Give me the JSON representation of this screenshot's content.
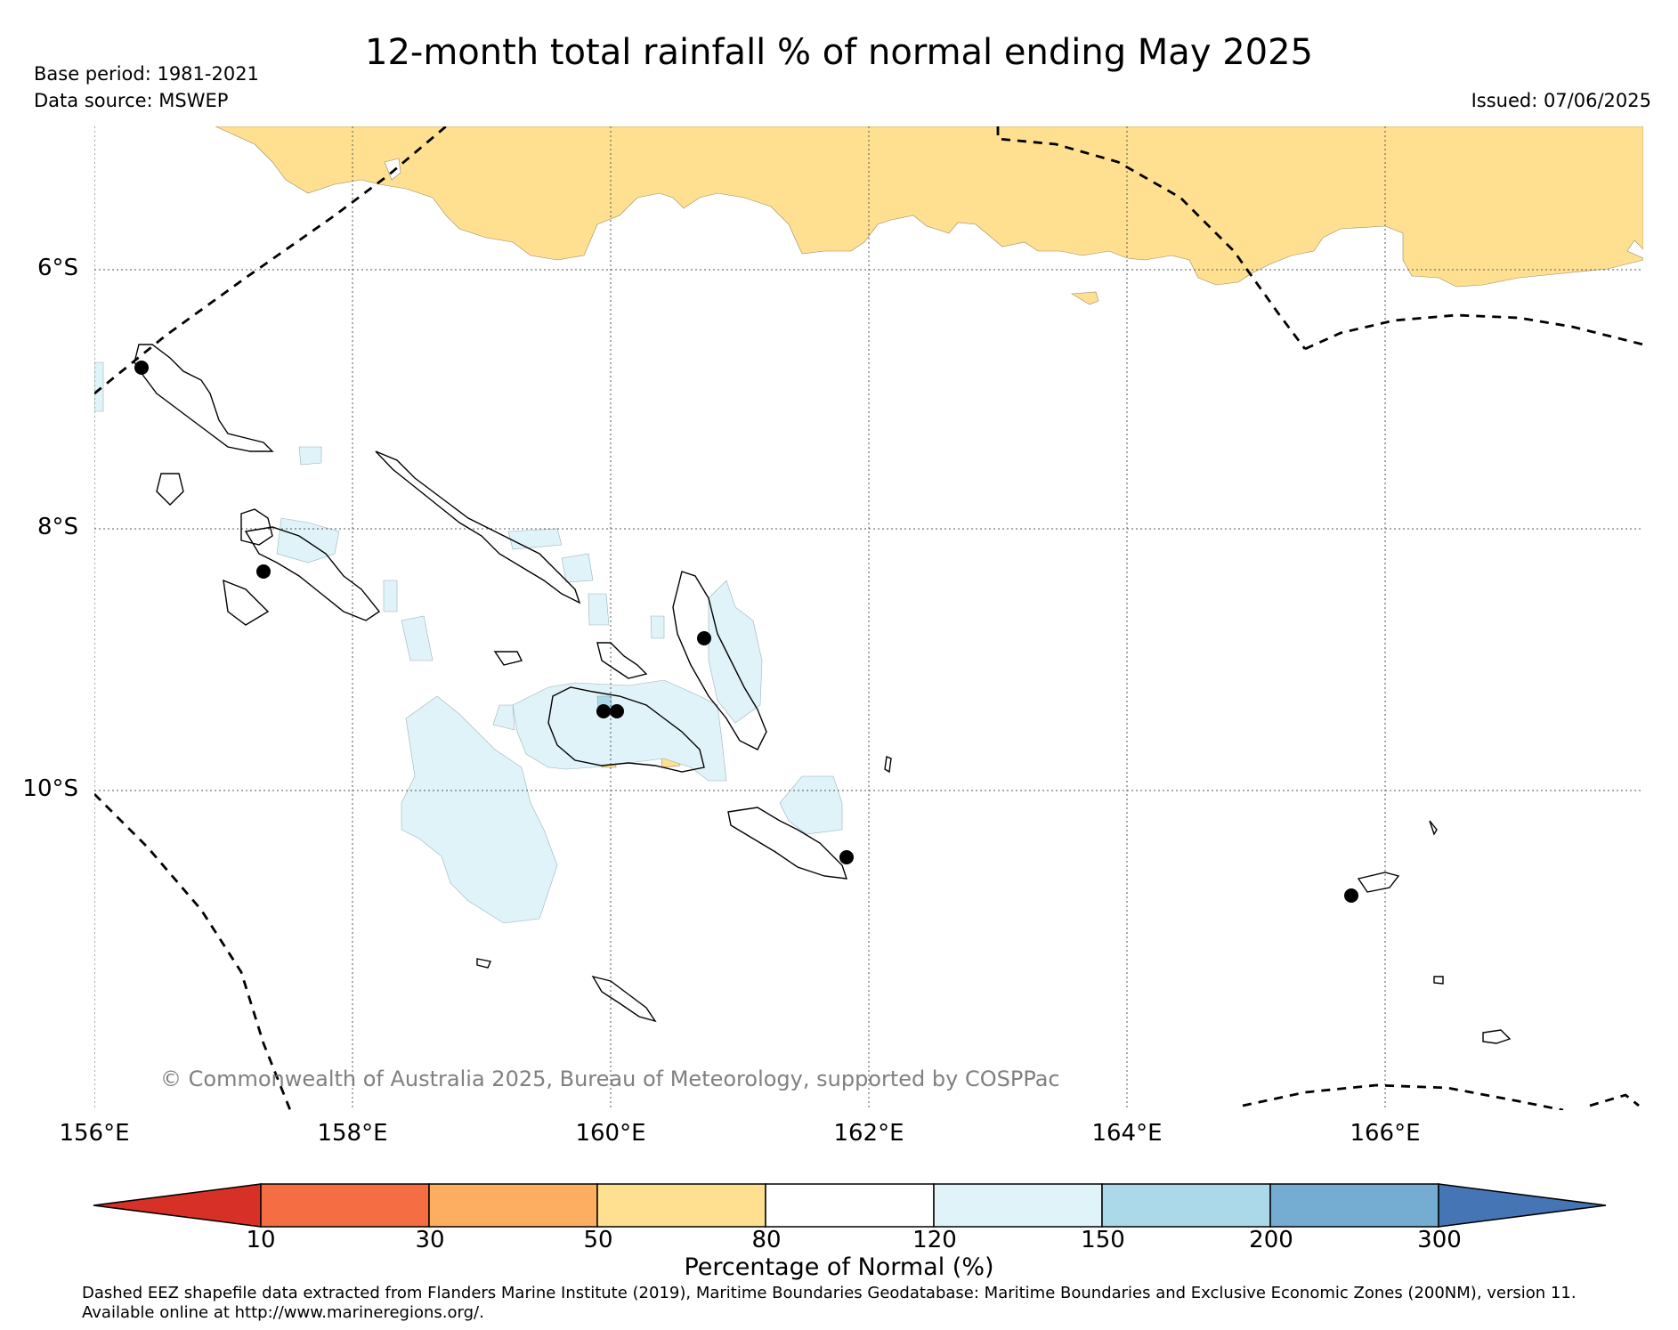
{
  "header": {
    "title": "12-month total rainfall % of normal ending May 2025",
    "base_period": "Base period: 1981-2021",
    "data_source": "Data source: MSWEP",
    "issued": "Issued: 07/06/2025"
  },
  "map": {
    "lat_labels": [
      "6°S",
      "8°S",
      "10°S"
    ],
    "lon_labels": [
      "156°E",
      "158°E",
      "160°E",
      "162°E",
      "164°E",
      "166°E"
    ],
    "copyright": "© Commonwealth of Australia 2025, Bureau of Meteorology, supported by COSPPac",
    "colors": {
      "below_80": "#fee090",
      "above_120": "#e0f3f8",
      "above_150": "#abd9e9",
      "eez_line": "#000000",
      "coast_line": "#000000"
    }
  },
  "colorbar": {
    "ticks": [
      "10",
      "30",
      "50",
      "80",
      "120",
      "150",
      "200",
      "300"
    ],
    "colors": [
      "#d73027",
      "#f46d43",
      "#fdae61",
      "#fee090",
      "#ffffff",
      "#e0f3f8",
      "#abd9e9",
      "#74add1",
      "#4575b4"
    ],
    "label": "Percentage of Normal (%)"
  },
  "footnote": {
    "line1": "Dashed EEZ shapefile data extracted from Flanders Marine Institute (2019), Maritime Boundaries Geodatabase: Maritime Boundaries and Exclusive Economic Zones (200NM), version 11.",
    "line2": "Available online at http://www.marineregions.org/."
  }
}
